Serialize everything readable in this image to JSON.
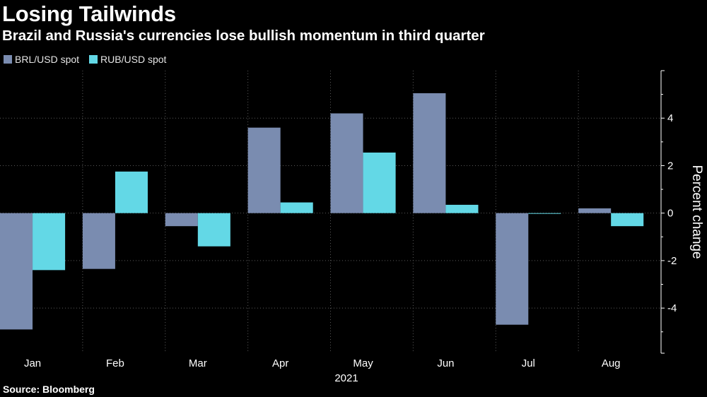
{
  "title": "Losing Tailwinds",
  "subtitle": "Brazil and Russia's currencies lose bullish momentum in third quarter",
  "source": "Source: Bloomberg",
  "colors": {
    "background": "#000000",
    "brl": "#7a8cb0",
    "rub": "#63d8e6"
  },
  "chart_data": {
    "type": "bar",
    "title": "Losing Tailwinds",
    "subtitle": "Brazil and Russia's currencies lose bullish momentum in third quarter",
    "categories": [
      "Jan",
      "Feb",
      "Mar",
      "Apr",
      "May",
      "Jun",
      "Jul",
      "Aug"
    ],
    "xlabel": "2021",
    "ylabel": "Percent change",
    "yticks": [
      -4,
      -2,
      0,
      2,
      4
    ],
    "ylim": [
      -5.9,
      6
    ],
    "grid": true,
    "legend_position": "top-left",
    "y_axis_side": "right",
    "series": [
      {
        "name": "BRL/USD spot",
        "color": "#7a8cb0",
        "values": [
          -4.9,
          -2.35,
          -0.55,
          3.6,
          4.2,
          5.05,
          -4.7,
          0.2
        ]
      },
      {
        "name": "RUB/USD spot",
        "color": "#63d8e6",
        "values": [
          -2.4,
          1.75,
          -1.4,
          0.45,
          2.55,
          0.35,
          -0.02,
          -0.55
        ]
      }
    ]
  }
}
